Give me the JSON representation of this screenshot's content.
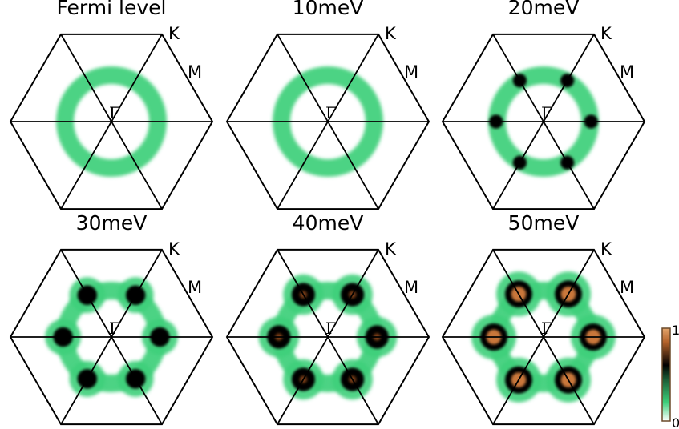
{
  "panels": [
    {
      "title": "Fermi level",
      "k_label": "K",
      "m_label": "M",
      "center_label": "Γ",
      "hotspot_intensity": 0.0
    },
    {
      "title": "10meV",
      "k_label": "K",
      "m_label": "M",
      "center_label": "Γ",
      "hotspot_intensity": 0.0
    },
    {
      "title": "20meV",
      "k_label": "K",
      "m_label": "M",
      "center_label": "Γ",
      "hotspot_intensity": 0.3
    },
    {
      "title": "30meV",
      "k_label": "K",
      "m_label": "M",
      "center_label": "Γ",
      "hotspot_intensity": 0.6
    },
    {
      "title": "40meV",
      "k_label": "K",
      "m_label": "M",
      "center_label": "Γ",
      "hotspot_intensity": 0.8
    },
    {
      "title": "50meV",
      "k_label": "K",
      "m_label": "M",
      "center_label": "Γ",
      "hotspot_intensity": 1.0
    }
  ],
  "colorbar": {
    "max_label": "1",
    "min_label": "0",
    "colors": [
      "#ffffff",
      "#3ecf7a",
      "#000000",
      "#b3622a",
      "#e3a56b"
    ]
  }
}
